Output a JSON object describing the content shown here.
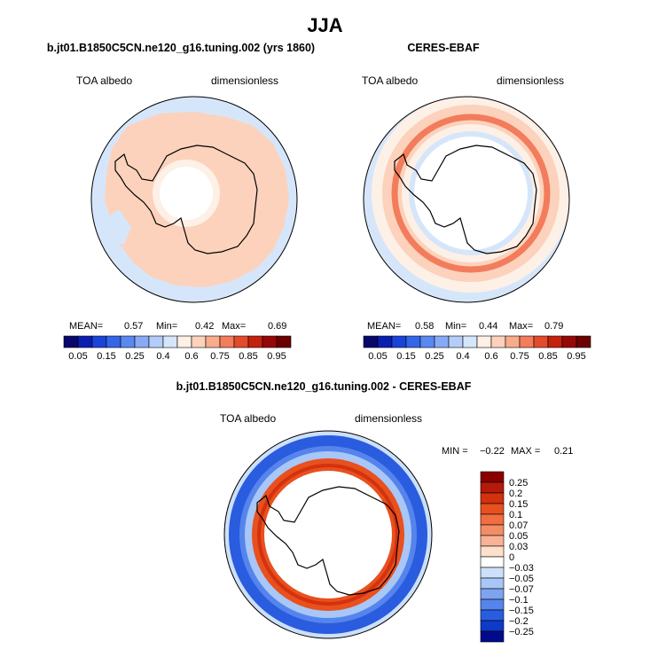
{
  "figure": {
    "title": "JJA"
  },
  "chart_data": [
    {
      "type": "heatmap",
      "projection": "south-polar-stereographic",
      "title": "b.jt01.B1850C5CN.ne120_g16.tuning.002 (yrs 1860)",
      "left_label": "TOA albedo",
      "right_label": "dimensionless",
      "stats": {
        "mean_label": "MEAN=",
        "mean": "0.57",
        "min_label": "Min=",
        "min": "0.42",
        "max_label": "Max=",
        "max": "0.69"
      },
      "colorbar": {
        "orientation": "horizontal",
        "levels": [
          0.05,
          0.1,
          0.15,
          0.2,
          0.25,
          0.3,
          0.4,
          0.5,
          0.6,
          0.65,
          0.7,
          0.75,
          0.8,
          0.85,
          0.9,
          0.95
        ],
        "tick_labels": [
          "0.05",
          "0.15",
          "0.25",
          "0.4",
          "0.6",
          "0.75",
          "0.85",
          "0.95"
        ],
        "colors": [
          "#08086a",
          "#0a1fb0",
          "#1a44d8",
          "#3366e8",
          "#5a88f0",
          "#88aaf4",
          "#b4ccf8",
          "#d6e6fa",
          "#fdf0e6",
          "#fcd2bc",
          "#f8ac8c",
          "#f27c5c",
          "#e44a2c",
          "#c2220e",
          "#960808",
          "#6a0000"
        ]
      }
    },
    {
      "type": "heatmap",
      "projection": "south-polar-stereographic",
      "title": "CERES-EBAF",
      "left_label": "TOA albedo",
      "right_label": "dimensionless",
      "stats": {
        "mean_label": "MEAN=",
        "mean": "0.58",
        "min_label": "Min=",
        "min": "0.44",
        "max_label": "Max=",
        "max": "0.79"
      },
      "colorbar": {
        "orientation": "horizontal",
        "levels": [
          0.05,
          0.1,
          0.15,
          0.2,
          0.25,
          0.3,
          0.4,
          0.5,
          0.6,
          0.65,
          0.7,
          0.75,
          0.8,
          0.85,
          0.9,
          0.95
        ],
        "tick_labels": [
          "0.05",
          "0.15",
          "0.25",
          "0.4",
          "0.6",
          "0.75",
          "0.85",
          "0.95"
        ],
        "colors": [
          "#08086a",
          "#0a1fb0",
          "#1a44d8",
          "#3366e8",
          "#5a88f0",
          "#88aaf4",
          "#b4ccf8",
          "#d6e6fa",
          "#fdf0e6",
          "#fcd2bc",
          "#f8ac8c",
          "#f27c5c",
          "#e44a2c",
          "#c2220e",
          "#960808",
          "#6a0000"
        ]
      }
    },
    {
      "type": "heatmap",
      "projection": "south-polar-stereographic",
      "title": "b.jt01.B1850C5CN.ne120_g16.tuning.002 - CERES-EBAF",
      "left_label": "TOA albedo",
      "right_label": "dimensionless",
      "stats": {
        "min_label": "MIN =",
        "min": "−0.22",
        "max_label": "MAX =",
        "max": "0.21"
      },
      "colorbar": {
        "orientation": "vertical",
        "tick_labels": [
          "0.25",
          "0.2",
          "0.15",
          "0.1",
          "0.07",
          "0.05",
          "0.03",
          "0",
          "−0.03",
          "−0.05",
          "−0.07",
          "−0.1",
          "−0.15",
          "−0.2",
          "−0.25"
        ],
        "colors": [
          "#8a0000",
          "#b51a0a",
          "#d4310e",
          "#e8501e",
          "#f06e40",
          "#f28e66",
          "#f8b296",
          "#fde0cc",
          "#ffffff",
          "#cde0fa",
          "#a8c6f6",
          "#7ea4f0",
          "#5584ec",
          "#2a5ce0",
          "#0d3ac8",
          "#000a8a"
        ]
      }
    }
  ]
}
